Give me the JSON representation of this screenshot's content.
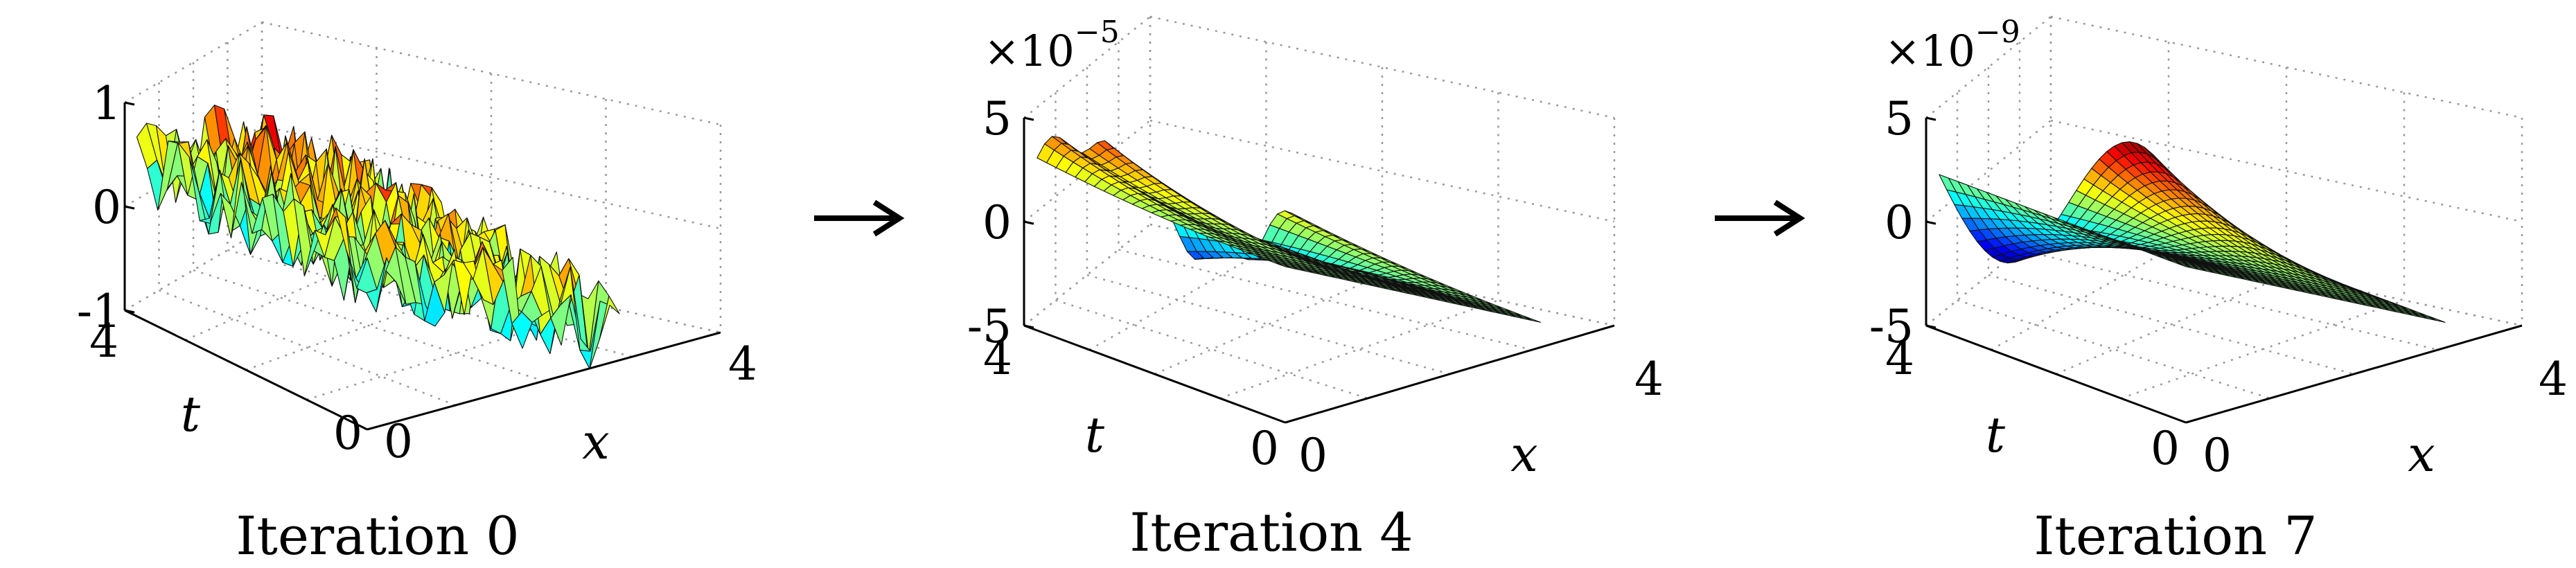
{
  "chart_data": [
    {
      "type": "surface",
      "caption": "Iteration 0",
      "xlabel": "x",
      "ylabel": "t",
      "z_tick_labels": [
        "-1",
        "0",
        "1"
      ],
      "t_tick_labels": [
        "4",
        "0"
      ],
      "x_tick_labels": [
        "0",
        "4"
      ],
      "exponent_label": "",
      "exponent_power": "",
      "xlim": [
        0,
        4
      ],
      "tlim": [
        0,
        4
      ],
      "zlim": [
        -1,
        1
      ],
      "surface": "random noise in [-1, 1] with a smooth ridge along t"
    },
    {
      "type": "surface",
      "caption": "Iteration 4",
      "xlabel": "x",
      "ylabel": "t",
      "z_tick_labels": [
        "-5",
        "0",
        "5"
      ],
      "t_tick_labels": [
        "4",
        "0"
      ],
      "x_tick_labels": [
        "0",
        "4"
      ],
      "exponent_label": "×10",
      "exponent_power": "−5",
      "xlim": [
        0,
        4
      ],
      "tlim": [
        0,
        4
      ],
      "zlim": [
        -5,
        5
      ],
      "surface": "smooth bumps of amplitude ~3e-5 near t = 4, decaying to flat toward t = 0"
    },
    {
      "type": "surface",
      "caption": "Iteration 7",
      "xlabel": "x",
      "ylabel": "t",
      "z_tick_labels": [
        "-5",
        "0",
        "5"
      ],
      "t_tick_labels": [
        "4",
        "0"
      ],
      "x_tick_labels": [
        "0",
        "4"
      ],
      "exponent_label": "×10",
      "exponent_power": "−9",
      "xlim": [
        0,
        4
      ],
      "tlim": [
        0,
        4
      ],
      "zlim": [
        -5,
        5
      ],
      "surface": "one sine period of amplitude ~5e-9 along x near t = 4, flat toward t = 0"
    }
  ],
  "colors": {
    "colormap": "jet",
    "arrow": "#000000",
    "grid": "#9a9a9a"
  }
}
